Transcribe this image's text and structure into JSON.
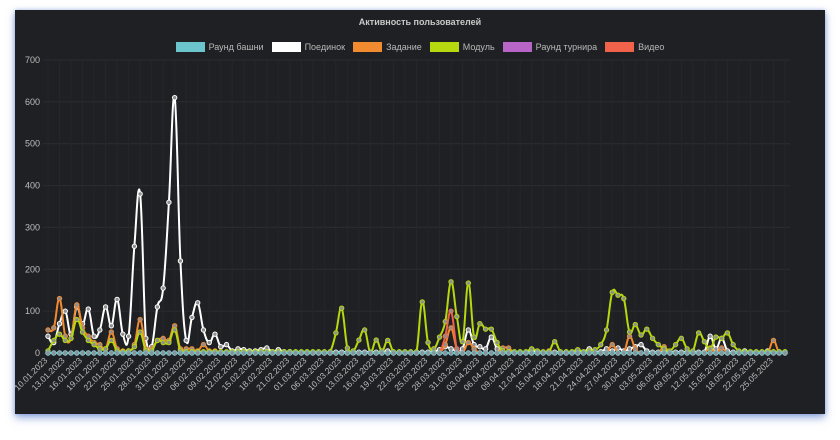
{
  "chart_data": {
    "type": "line",
    "title": "Активность пользователей",
    "ylim": [
      0,
      700
    ],
    "y_ticks": [
      0,
      100,
      200,
      300,
      400,
      500,
      600,
      700
    ],
    "grid": true,
    "legend_position": "top",
    "background": "#1f2023",
    "x_tick_labels": [
      "10.01.2023",
      "13.01.2023",
      "16.01.2023",
      "19.01.2023",
      "22.01.2023",
      "25.01.2023",
      "28.01.2023",
      "31.01.2023",
      "03.02.2023",
      "06.02.2023",
      "09.02.2023",
      "12.02.2023",
      "15.02.2023",
      "18.02.2023",
      "21.02.2023",
      "01.03.2023",
      "06.03.2023",
      "10.03.2023",
      "13.03.2023",
      "16.03.2023",
      "19.03.2023",
      "22.03.2023",
      "25.03.2023",
      "28.03.2023",
      "31.03.2023",
      "03.04.2023",
      "06.04.2023",
      "09.04.2023",
      "12.04.2023",
      "15.04.2023",
      "18.04.2023",
      "21.04.2023",
      "24.04.2023",
      "27.04.2023",
      "30.04.2023",
      "03.05.2023",
      "06.05.2023",
      "09.05.2023",
      "12.05.2023",
      "15.05.2023",
      "18.05.2023",
      "22.05.2023",
      "25.05.2023"
    ],
    "points_per_tick_label": 3,
    "series": [
      {
        "name": "Раунд башни",
        "color": "#6cc5cc",
        "values": [
          0,
          0,
          0,
          0,
          0,
          0,
          0,
          0,
          0,
          0,
          0,
          0,
          0,
          0,
          0,
          0,
          0,
          0,
          0,
          0,
          0,
          0,
          0,
          0,
          0,
          0,
          0,
          0,
          0,
          0,
          0,
          0,
          0,
          0,
          0,
          0,
          0,
          0,
          0,
          0,
          0,
          0,
          0,
          0,
          0,
          0,
          0,
          0,
          0,
          0,
          0,
          0,
          0,
          0,
          0,
          0,
          0,
          0,
          0,
          0,
          0,
          0,
          0,
          0,
          0,
          0,
          0,
          0,
          0,
          0,
          0,
          0,
          0,
          0,
          0,
          0,
          0,
          0,
          0,
          0,
          0,
          0,
          0,
          0,
          0,
          0,
          0,
          0,
          0,
          0,
          0,
          0,
          0,
          0,
          0,
          0,
          0,
          0,
          0,
          0,
          0,
          0,
          0,
          0,
          0,
          0,
          0,
          0,
          0,
          0,
          0,
          0,
          0,
          0,
          0,
          0,
          0,
          0,
          0,
          0,
          0,
          0,
          0,
          0,
          0,
          0,
          0,
          0,
          0
        ]
      },
      {
        "name": "Поединок",
        "color": "#ffffff",
        "values": [
          40,
          25,
          70,
          100,
          45,
          110,
          70,
          105,
          40,
          55,
          110,
          65,
          128,
          45,
          40,
          255,
          380,
          35,
          15,
          110,
          155,
          360,
          610,
          220,
          30,
          85,
          120,
          55,
          25,
          45,
          15,
          20,
          5,
          10,
          8,
          5,
          5,
          8,
          12,
          3,
          8,
          3,
          3,
          2,
          2,
          2,
          2,
          2,
          2,
          2,
          2,
          2,
          2,
          2,
          2,
          2,
          2,
          2,
          2,
          5,
          2,
          2,
          2,
          2,
          2,
          2,
          2,
          3,
          8,
          15,
          10,
          5,
          10,
          55,
          20,
          15,
          10,
          38,
          10,
          3,
          3,
          2,
          2,
          2,
          5,
          2,
          2,
          2,
          2,
          2,
          2,
          2,
          2,
          2,
          10,
          3,
          3,
          10,
          5,
          12,
          5,
          10,
          15,
          20,
          5,
          2,
          2,
          2,
          2,
          2,
          2,
          2,
          2,
          2,
          2,
          40,
          10,
          35,
          5,
          2,
          2,
          5,
          2,
          2,
          2,
          5,
          2,
          2,
          2
        ]
      },
      {
        "name": "Задание",
        "color": "#f28a30",
        "values": [
          55,
          60,
          130,
          40,
          35,
          115,
          60,
          40,
          25,
          20,
          10,
          50,
          10,
          5,
          5,
          20,
          80,
          10,
          10,
          30,
          35,
          30,
          65,
          10,
          10,
          10,
          5,
          20,
          5,
          5,
          2,
          2,
          0,
          0,
          0,
          0,
          0,
          0,
          0,
          0,
          0,
          0,
          0,
          0,
          0,
          0,
          0,
          0,
          0,
          0,
          0,
          0,
          0,
          0,
          0,
          0,
          0,
          0,
          0,
          0,
          0,
          0,
          0,
          0,
          0,
          0,
          0,
          0,
          0,
          20,
          60,
          10,
          0,
          25,
          10,
          0,
          0,
          0,
          0,
          12,
          12,
          0,
          0,
          0,
          0,
          0,
          0,
          5,
          0,
          0,
          0,
          0,
          0,
          0,
          0,
          0,
          0,
          0,
          20,
          0,
          0,
          40,
          10,
          0,
          0,
          0,
          0,
          15,
          0,
          0,
          0,
          0,
          0,
          0,
          0,
          12,
          0,
          12,
          0,
          0,
          0,
          0,
          0,
          0,
          0,
          0,
          30,
          0,
          0
        ]
      },
      {
        "name": "Модуль",
        "color": "#b5d80f",
        "values": [
          5,
          30,
          45,
          30,
          35,
          80,
          50,
          30,
          20,
          10,
          10,
          30,
          5,
          3,
          5,
          15,
          50,
          5,
          5,
          30,
          25,
          25,
          55,
          5,
          3,
          3,
          3,
          3,
          3,
          3,
          3,
          3,
          3,
          3,
          3,
          3,
          3,
          3,
          3,
          3,
          3,
          3,
          3,
          3,
          3,
          3,
          3,
          3,
          3,
          3,
          48,
          107,
          12,
          5,
          31,
          55,
          0,
          31,
          5,
          30,
          3,
          3,
          3,
          3,
          3,
          122,
          25,
          10,
          38,
          75,
          170,
          87,
          27,
          167,
          38,
          70,
          57,
          57,
          25,
          5,
          3,
          3,
          3,
          3,
          10,
          5,
          3,
          3,
          27,
          3,
          3,
          3,
          8,
          3,
          5,
          8,
          20,
          55,
          145,
          138,
          130,
          50,
          68,
          43,
          57,
          35,
          20,
          10,
          5,
          20,
          35,
          10,
          5,
          48,
          27,
          10,
          38,
          35,
          48,
          20,
          5,
          3,
          3,
          3,
          3,
          3,
          3,
          3,
          3
        ]
      },
      {
        "name": "Раунд турнира",
        "color": "#b865c8",
        "values": [
          0,
          0,
          0,
          0,
          0,
          0,
          0,
          0,
          0,
          0,
          0,
          0,
          0,
          0,
          0,
          0,
          0,
          0,
          0,
          0,
          0,
          0,
          0,
          0,
          0,
          0,
          0,
          0,
          0,
          0,
          0,
          0,
          0,
          0,
          0,
          0,
          0,
          0,
          0,
          0,
          0,
          0,
          0,
          0,
          0,
          0,
          0,
          0,
          0,
          0,
          0,
          0,
          0,
          0,
          0,
          0,
          0,
          0,
          0,
          0,
          0,
          0,
          0,
          0,
          0,
          0,
          0,
          0,
          0,
          0,
          0,
          0,
          0,
          0,
          0,
          0,
          0,
          0,
          0,
          0,
          0,
          0,
          0,
          0,
          0,
          0,
          0,
          0,
          0,
          0,
          0,
          0,
          0,
          0,
          0,
          0,
          0,
          0,
          0,
          0,
          0,
          0,
          0,
          0,
          0,
          0,
          0,
          0,
          0,
          0,
          0,
          0,
          0,
          0,
          0,
          0,
          0,
          0,
          0,
          0,
          0,
          0,
          0,
          0,
          0,
          0,
          0,
          0,
          0
        ]
      },
      {
        "name": "Видео",
        "color": "#f0624a",
        "values": [
          0,
          0,
          0,
          0,
          0,
          0,
          0,
          0,
          0,
          0,
          0,
          0,
          0,
          0,
          0,
          0,
          0,
          0,
          0,
          0,
          0,
          0,
          0,
          0,
          0,
          0,
          0,
          0,
          0,
          0,
          0,
          0,
          0,
          0,
          0,
          0,
          0,
          0,
          0,
          0,
          0,
          0,
          0,
          0,
          0,
          0,
          0,
          0,
          0,
          0,
          0,
          0,
          0,
          0,
          0,
          0,
          0,
          0,
          0,
          0,
          0,
          0,
          0,
          0,
          0,
          0,
          0,
          0,
          0,
          40,
          100,
          10,
          0,
          0,
          0,
          0,
          0,
          0,
          0,
          0,
          0,
          0,
          0,
          0,
          0,
          0,
          0,
          0,
          0,
          0,
          0,
          0,
          0,
          0,
          0,
          0,
          0,
          0,
          0,
          0,
          0,
          0,
          0,
          0,
          0,
          0,
          0,
          0,
          0,
          0,
          0,
          0,
          0,
          0,
          0,
          0,
          0,
          0,
          0,
          0,
          0,
          0,
          0,
          0,
          0,
          0,
          0,
          0,
          0
        ]
      }
    ]
  }
}
